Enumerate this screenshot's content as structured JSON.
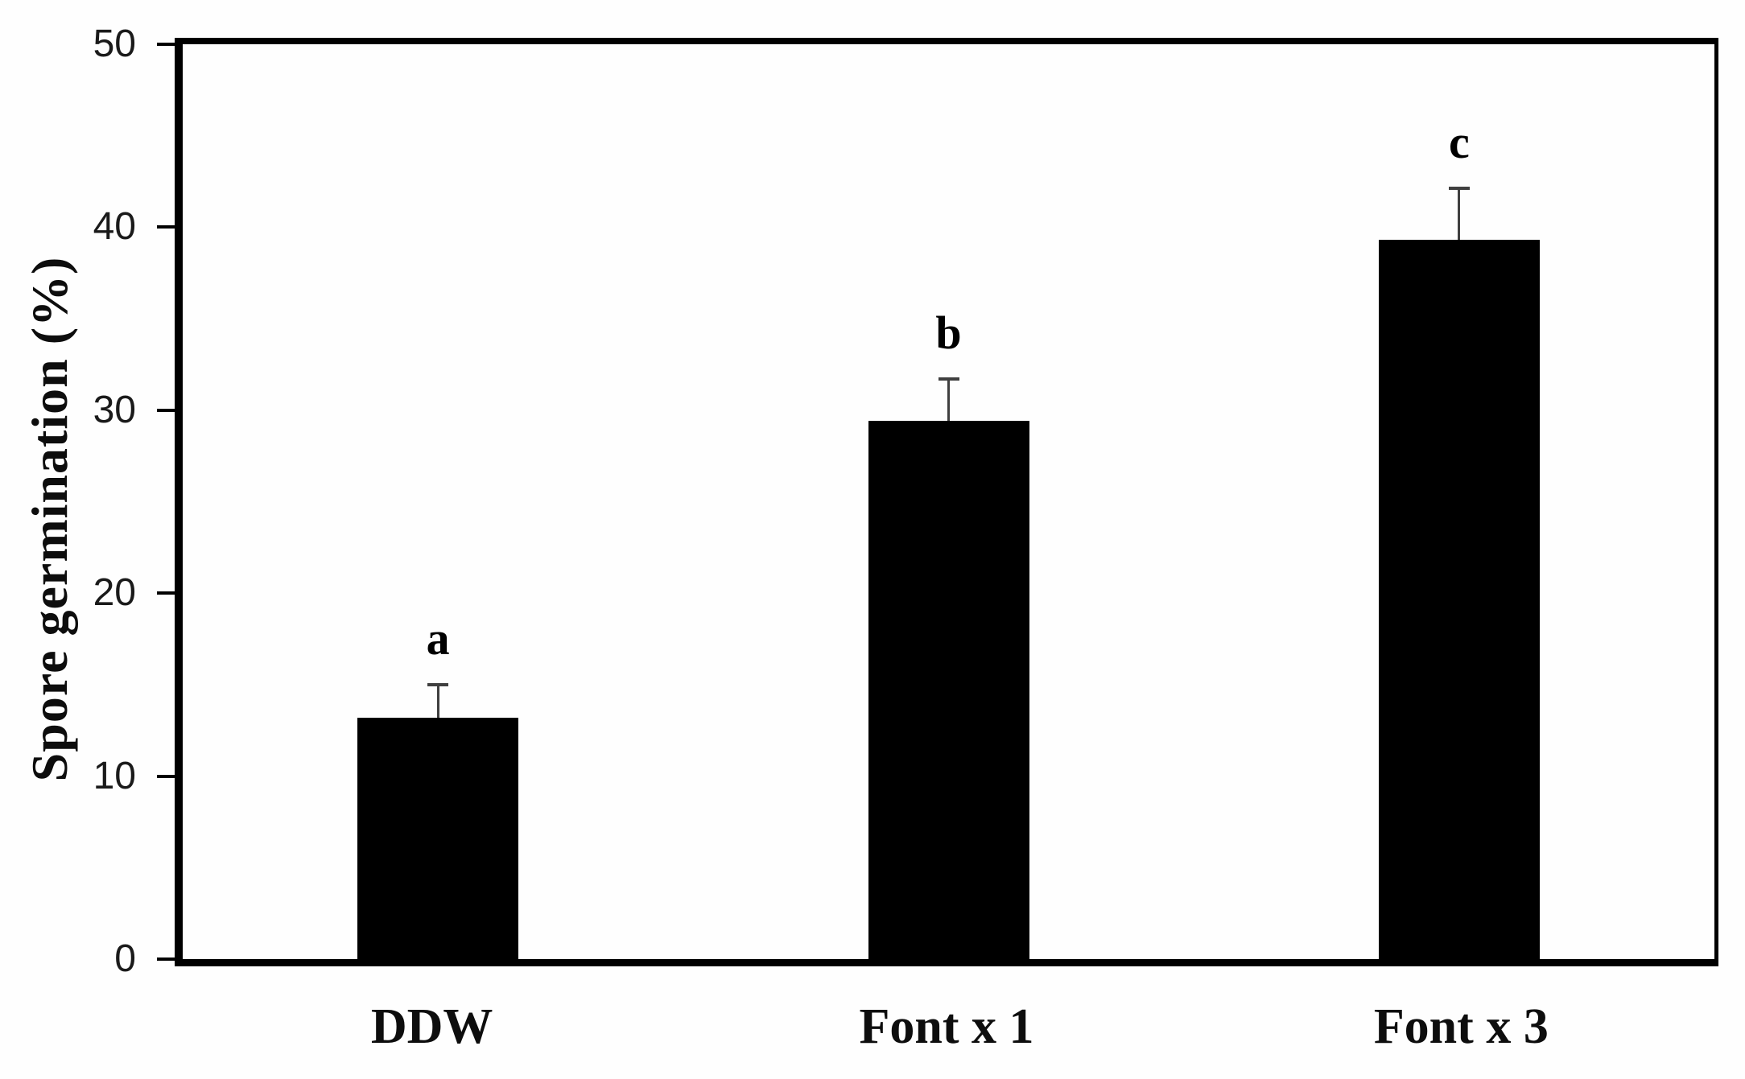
{
  "figure": {
    "background_color": "#fefefe",
    "axis_color": "#000000"
  },
  "chart_data": {
    "type": "bar",
    "title": "",
    "categories": [
      "DDW",
      "Font x 1",
      "Font x 3"
    ],
    "values": [
      13.2,
      29.4,
      39.3
    ],
    "errors": [
      1.9,
      2.4,
      2.9
    ],
    "significance_letters": [
      "a",
      "b",
      "c"
    ],
    "xlabel": "",
    "ylabel": "Spore germination (%)",
    "ylim": [
      0,
      50
    ],
    "yticks": [
      0,
      10,
      20,
      30,
      40,
      50
    ],
    "bar_color": "#000000",
    "error_bar_color": "#3f3f3f",
    "grid": false,
    "legend": false
  }
}
